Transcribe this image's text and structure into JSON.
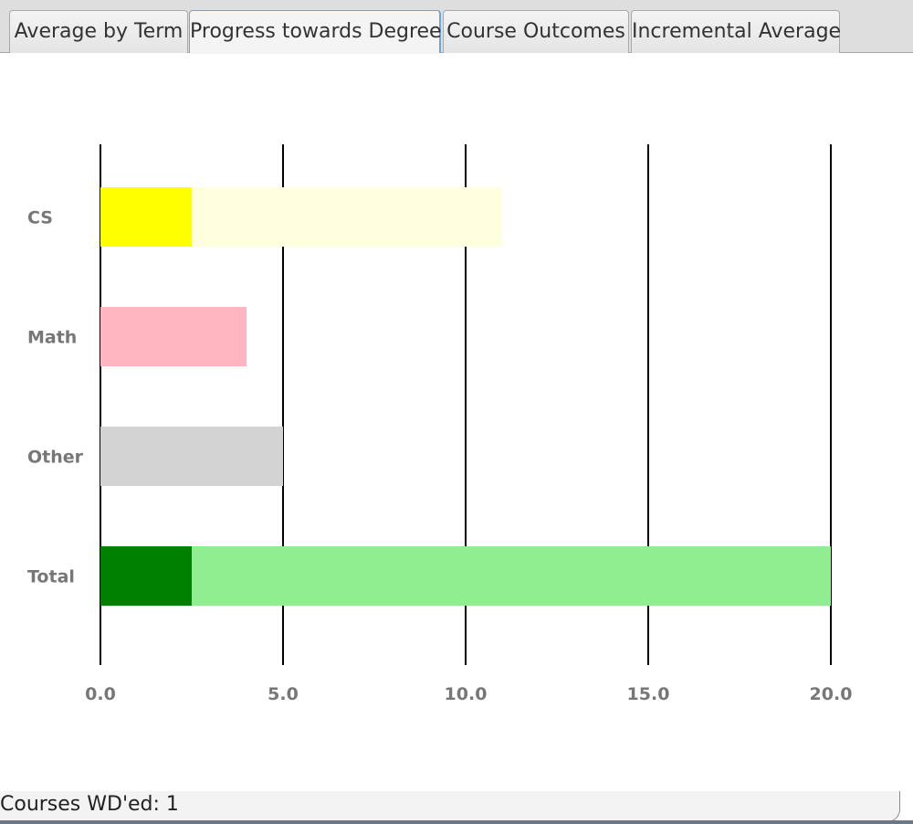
{
  "tabs": [
    {
      "label": "Average by Term",
      "selected": false
    },
    {
      "label": "Progress towards Degree",
      "selected": true
    },
    {
      "label": "Course Outcomes",
      "selected": false
    },
    {
      "label": "Incremental Average",
      "selected": false
    }
  ],
  "status": {
    "text": "Courses WD'ed: 1"
  },
  "chart_data": {
    "type": "bar",
    "orientation": "horizontal",
    "stacked": true,
    "categories": [
      "CS",
      "Math",
      "Other",
      "Total"
    ],
    "series": [
      {
        "values": [
          2.5,
          0,
          0,
          2.5
        ],
        "colors": [
          "#ffff00",
          "#ffb6c1",
          "#d3d3d3",
          "#008000"
        ]
      },
      {
        "values": [
          8.5,
          4,
          5,
          17.5
        ],
        "colors": [
          "#ffffe0",
          "#ffb6c1",
          "#d3d3d3",
          "#90ee90"
        ]
      }
    ],
    "xlim": [
      0,
      20
    ],
    "xticks": [
      "0.0",
      "5.0",
      "10.0",
      "15.0",
      "20.0"
    ],
    "xtick_values": [
      0,
      5,
      10,
      15,
      20
    ],
    "grid": "vertical",
    "title": "",
    "xlabel": "",
    "ylabel": ""
  },
  "colors": {
    "tick_label": "#777777",
    "gridline": "#000000"
  }
}
